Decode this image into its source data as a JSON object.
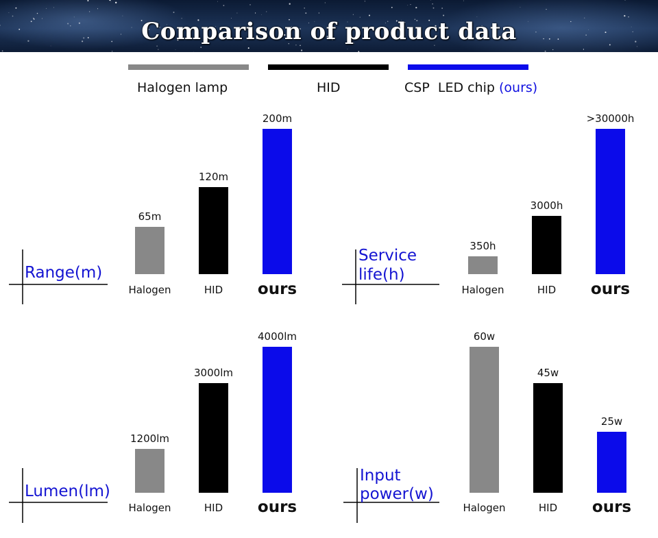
{
  "title": "Comparison of product data",
  "legend": [
    {
      "key": "halogen",
      "label": "Halogen lamp",
      "note": "",
      "color": "#888888"
    },
    {
      "key": "hid",
      "label": "HID",
      "note": "",
      "color": "#000000"
    },
    {
      "key": "led",
      "label": "CSP  LED chip ",
      "note": "(ours)",
      "color": "#0b0bea"
    }
  ],
  "chart_data": [
    {
      "type": "bar",
      "title": "Range(m)",
      "categories": [
        "Halogen",
        "HID",
        "ours"
      ],
      "values": [
        65,
        120,
        200
      ],
      "value_labels": [
        "65m",
        "120m",
        "200m"
      ],
      "unit": "m",
      "colors": [
        "#888888",
        "#000000",
        "#0b0bea"
      ],
      "ylim": [
        0,
        200
      ]
    },
    {
      "type": "bar",
      "title": "Service life(h)",
      "categories": [
        "Halogen",
        "HID",
        "ours"
      ],
      "values": [
        350,
        3000,
        30000
      ],
      "value_labels": [
        "350h",
        "3000h",
        ">30000h"
      ],
      "unit": "h",
      "colors": [
        "#888888",
        "#000000",
        "#0b0bea"
      ],
      "ylim": [
        0,
        30000
      ],
      "note": "bars not to scale"
    },
    {
      "type": "bar",
      "title": "Lumen(lm)",
      "categories": [
        "Halogen",
        "HID",
        "ours"
      ],
      "values": [
        1200,
        3000,
        4000
      ],
      "value_labels": [
        "1200lm",
        "3000lm",
        "4000lm"
      ],
      "unit": "lm",
      "colors": [
        "#888888",
        "#000000",
        "#0b0bea"
      ],
      "ylim": [
        0,
        4000
      ]
    },
    {
      "type": "bar",
      "title": "Input power(w)",
      "categories": [
        "Halogen",
        "HID",
        "ours"
      ],
      "values": [
        60,
        45,
        25
      ],
      "value_labels": [
        "60w",
        "45w",
        "25w"
      ],
      "unit": "w",
      "colors": [
        "#888888",
        "#000000",
        "#0b0bea"
      ],
      "ylim": [
        0,
        60
      ]
    }
  ]
}
